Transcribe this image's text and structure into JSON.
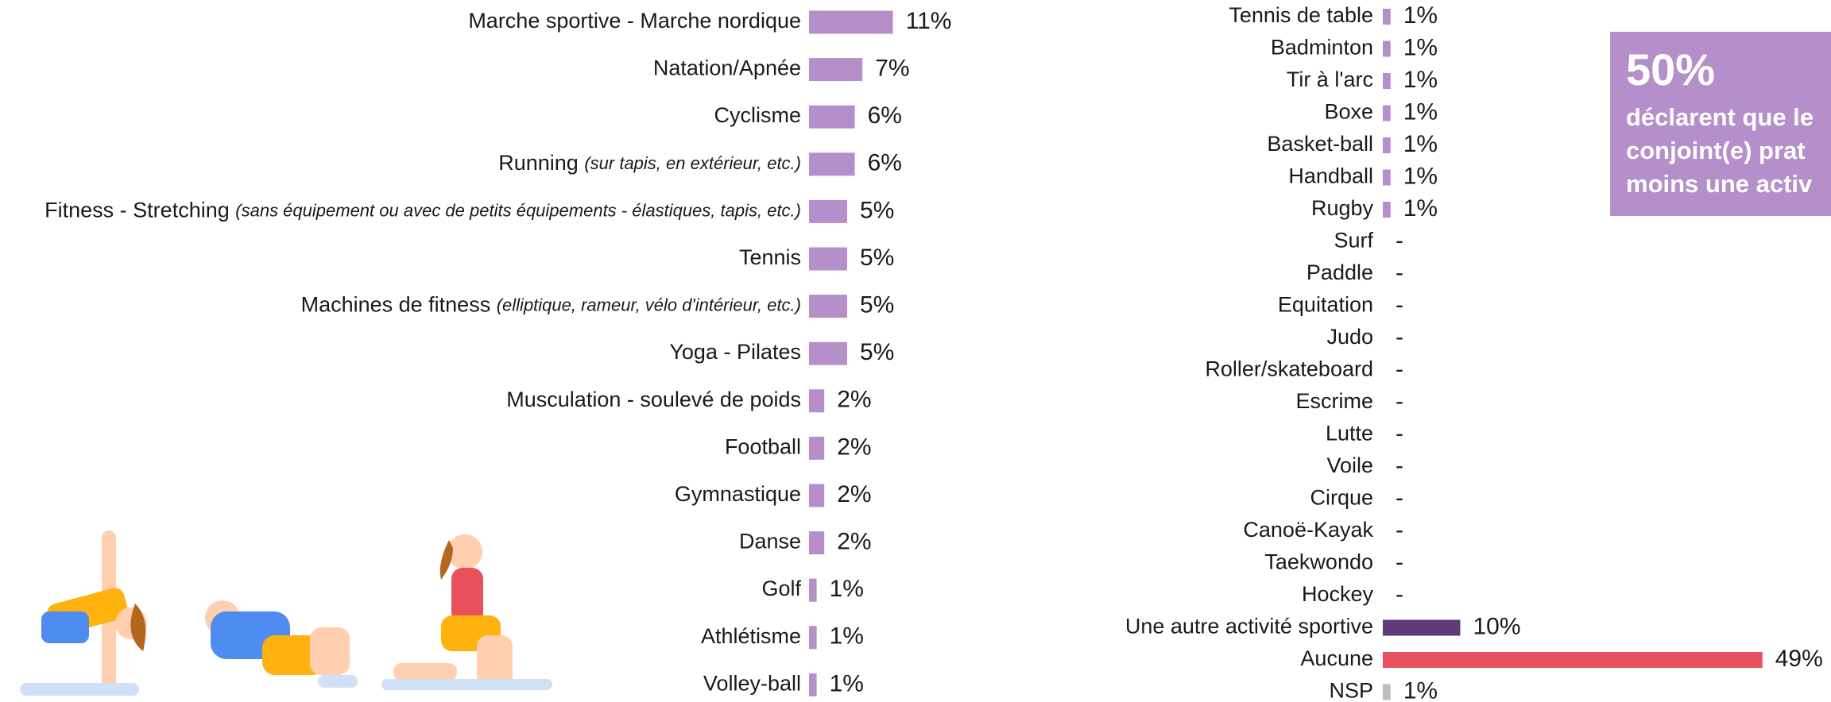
{
  "chart_data": [
    {
      "type": "bar",
      "orientation": "horizontal",
      "color": "#b48fca",
      "categories": [
        "Marche sportive - Marche nordique",
        "Natation/Apnée",
        "Cyclisme",
        "Running",
        "Fitness - Stretching",
        "Tennis",
        "Machines de fitness",
        "Yoga - Pilates",
        "Musculation - soulevé de poids",
        "Football",
        "Gymnastique",
        "Danse",
        "Golf",
        "Athlétisme",
        "Volley-ball"
      ],
      "category_notes": [
        null,
        null,
        null,
        "(sur tapis, en extérieur, etc.)",
        "(sans équipement ou avec de petits équipements - élastiques, tapis, etc.)",
        null,
        "(elliptique, rameur, vélo d'intérieur, etc.)",
        null,
        null,
        null,
        null,
        null,
        null,
        null,
        null
      ],
      "values": [
        11,
        7,
        6,
        6,
        5,
        5,
        5,
        5,
        2,
        2,
        2,
        2,
        1,
        1,
        1
      ],
      "value_labels": [
        "11%",
        "7%",
        "6%",
        "6%",
        "5%",
        "5%",
        "5%",
        "5%",
        "2%",
        "2%",
        "2%",
        "2%",
        "1%",
        "1%",
        "1%"
      ]
    },
    {
      "type": "bar",
      "orientation": "horizontal",
      "categories": [
        "Tennis de table",
        "Badminton",
        "Tir à l'arc",
        "Boxe",
        "Basket-ball",
        "Handball",
        "Rugby",
        "Surf",
        "Paddle",
        "Equitation",
        "Judo",
        "Roller/skateboard",
        "Escrime",
        "Lutte",
        "Voile",
        "Cirque",
        "Canoë-Kayak",
        "Taekwondo",
        "Hockey",
        "Une autre activité sportive",
        "Aucune",
        "NSP"
      ],
      "values": [
        1,
        1,
        1,
        1,
        1,
        1,
        1,
        0,
        0,
        0,
        0,
        0,
        0,
        0,
        0,
        0,
        0,
        0,
        0,
        10,
        49,
        1
      ],
      "value_labels": [
        "1%",
        "1%",
        "1%",
        "1%",
        "1%",
        "1%",
        "1%",
        "-",
        "-",
        "-",
        "-",
        "-",
        "-",
        "-",
        "-",
        "-",
        "-",
        "-",
        "-",
        "10%",
        "49%",
        "1%"
      ],
      "colors": [
        "#b48fca",
        "#b48fca",
        "#b48fca",
        "#b48fca",
        "#b48fca",
        "#b48fca",
        "#b48fca",
        "#b48fca",
        "#b48fca",
        "#b48fca",
        "#b48fca",
        "#b48fca",
        "#b48fca",
        "#b48fca",
        "#b48fca",
        "#b48fca",
        "#b48fca",
        "#b48fca",
        "#b48fca",
        "#5e3a78",
        "#e8505b",
        "#bdbdbd"
      ]
    }
  ],
  "callout": {
    "headline": "50%",
    "lines": [
      "déclarent que le",
      "conjoint(e) prat",
      "moins une activ"
    ]
  }
}
